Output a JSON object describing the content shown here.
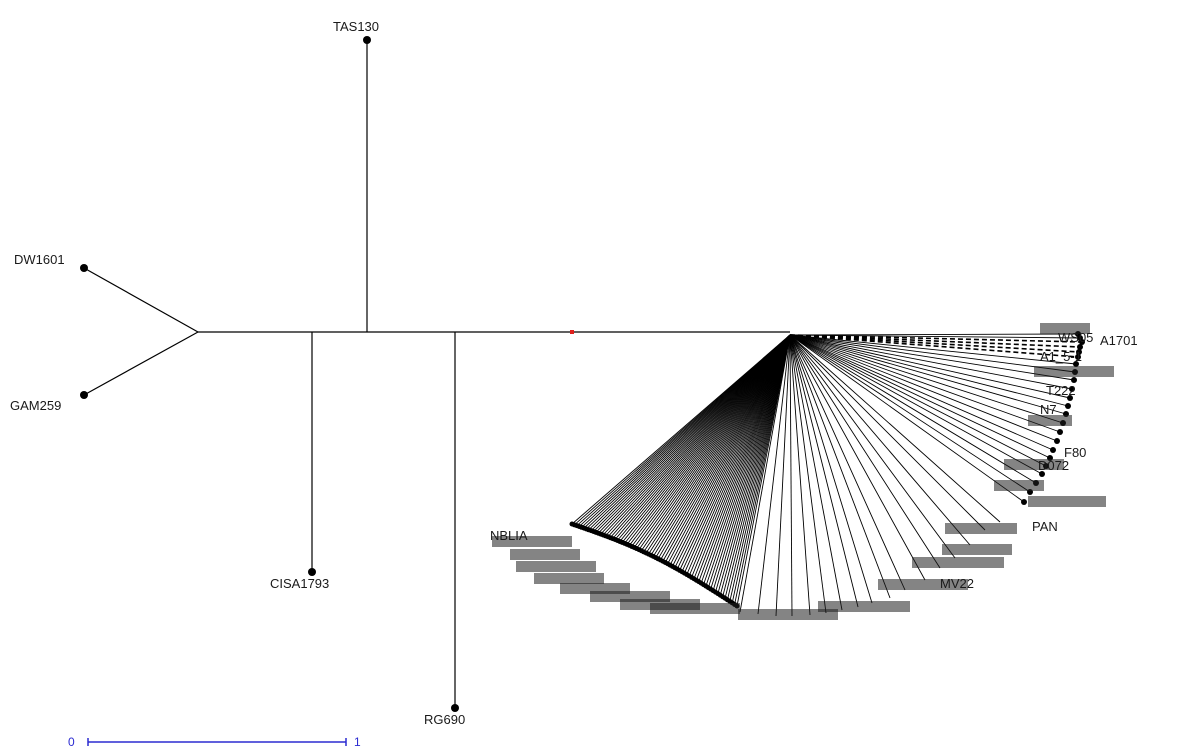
{
  "tree": {
    "labels": {
      "tas130": "TAS130",
      "dw1601": "DW1601",
      "gam259": "GAM259",
      "cisa1793": "CISA1793",
      "rg690": "RG690",
      "a1701": "A1701",
      "a1_5_1": "A1_5-1",
      "ws05": "WS05",
      "t222": "T222",
      "n7": "N7",
      "f80": "F80",
      "d072": "D072",
      "pan": "PAN",
      "nblia": "NBLIA",
      "mv22": "MV22"
    },
    "colors": {
      "branch": "#000000",
      "root_marker": "#e0201c",
      "scale_bar": "#2b2bd1"
    }
  },
  "scale": {
    "min_label": "0",
    "max_label": "1"
  }
}
